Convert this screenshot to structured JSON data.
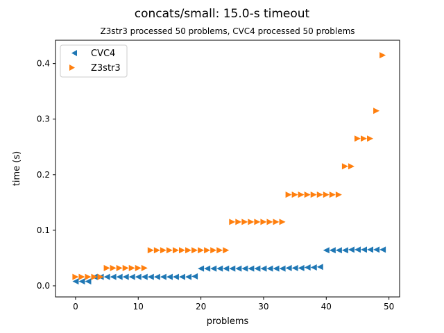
{
  "chart_data": {
    "type": "scatter",
    "title": "concats/small: 15.0-s timeout",
    "subtitle": "Z3str3 processed 50 problems, CVC4 processed 50 problems",
    "xlabel": "problems",
    "ylabel": "time (s)",
    "xlim": [
      -3.2,
      51.7
    ],
    "ylim": [
      -0.02,
      0.442
    ],
    "x_ticks": [
      0,
      10,
      20,
      30,
      40,
      50
    ],
    "y_ticks": [
      0.0,
      0.1,
      0.2,
      0.3,
      0.4
    ],
    "x_tick_labels": [
      "0",
      "10",
      "20",
      "30",
      "40",
      "50"
    ],
    "y_tick_labels": [
      "0.0",
      "0.1",
      "0.2",
      "0.3",
      "0.4"
    ],
    "grid": false,
    "legend_position": "top-left",
    "series": [
      {
        "name": "CVC4",
        "color": "#1f77b4",
        "marker": "triangle-left",
        "x": [
          0,
          1,
          2,
          3,
          4,
          5,
          6,
          7,
          8,
          9,
          10,
          11,
          12,
          13,
          14,
          15,
          16,
          17,
          18,
          19,
          20,
          21,
          22,
          23,
          24,
          25,
          26,
          27,
          28,
          29,
          30,
          31,
          32,
          33,
          34,
          35,
          36,
          37,
          38,
          39,
          40,
          41,
          42,
          43,
          44,
          45,
          46,
          47,
          48,
          49
        ],
        "y": [
          0.008,
          0.008,
          0.008,
          0.016,
          0.016,
          0.016,
          0.016,
          0.016,
          0.016,
          0.016,
          0.016,
          0.016,
          0.016,
          0.016,
          0.016,
          0.016,
          0.016,
          0.016,
          0.016,
          0.017,
          0.031,
          0.031,
          0.031,
          0.031,
          0.031,
          0.031,
          0.031,
          0.031,
          0.031,
          0.031,
          0.031,
          0.031,
          0.031,
          0.031,
          0.032,
          0.032,
          0.032,
          0.033,
          0.033,
          0.034,
          0.064,
          0.064,
          0.064,
          0.064,
          0.065,
          0.065,
          0.065,
          0.065,
          0.065,
          0.065
        ]
      },
      {
        "name": "Z3str3",
        "color": "#ff7f0e",
        "marker": "triangle-right",
        "x": [
          0,
          1,
          2,
          3,
          4,
          5,
          6,
          7,
          8,
          9,
          10,
          11,
          12,
          13,
          14,
          15,
          16,
          17,
          18,
          19,
          20,
          21,
          22,
          23,
          24,
          25,
          26,
          27,
          28,
          29,
          30,
          31,
          32,
          33,
          34,
          35,
          36,
          37,
          38,
          39,
          40,
          41,
          42,
          43,
          44,
          45,
          46,
          47,
          48,
          49
        ],
        "y": [
          0.016,
          0.016,
          0.016,
          0.016,
          0.016,
          0.032,
          0.032,
          0.032,
          0.032,
          0.032,
          0.032,
          0.032,
          0.064,
          0.064,
          0.064,
          0.064,
          0.064,
          0.064,
          0.064,
          0.064,
          0.064,
          0.064,
          0.064,
          0.064,
          0.064,
          0.115,
          0.115,
          0.115,
          0.115,
          0.115,
          0.115,
          0.115,
          0.115,
          0.115,
          0.164,
          0.164,
          0.164,
          0.164,
          0.164,
          0.164,
          0.164,
          0.164,
          0.164,
          0.215,
          0.215,
          0.265,
          0.265,
          0.265,
          0.315,
          0.415
        ]
      }
    ]
  }
}
